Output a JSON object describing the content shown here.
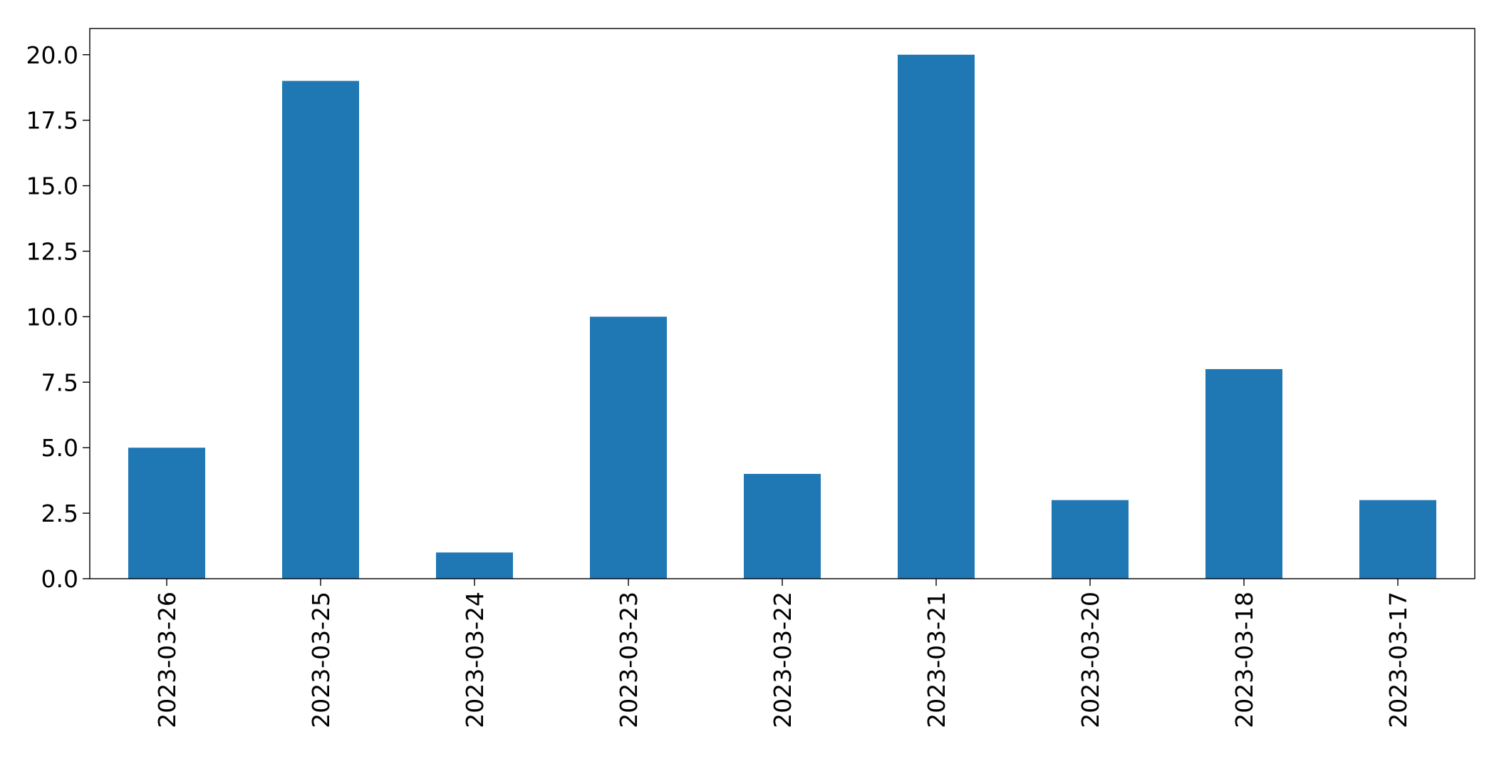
{
  "chart_data": {
    "type": "bar",
    "title": "",
    "xlabel": "",
    "ylabel": "",
    "categories": [
      "2023-03-26",
      "2023-03-25",
      "2023-03-24",
      "2023-03-23",
      "2023-03-22",
      "2023-03-21",
      "2023-03-20",
      "2023-03-18",
      "2023-03-17"
    ],
    "values": [
      5,
      19,
      1,
      10,
      4,
      20,
      3,
      8,
      3
    ],
    "ylim": [
      0,
      21
    ],
    "yticks": [
      0,
      2.5,
      5,
      7.5,
      10,
      12.5,
      15,
      17.5,
      20
    ],
    "ytick_labels": [
      "0.0",
      "2.5",
      "5.0",
      "7.5",
      "10.0",
      "12.5",
      "15.0",
      "17.5",
      "20.0"
    ],
    "grid": false,
    "legend": "none",
    "bar_color": "#1f77b4"
  }
}
